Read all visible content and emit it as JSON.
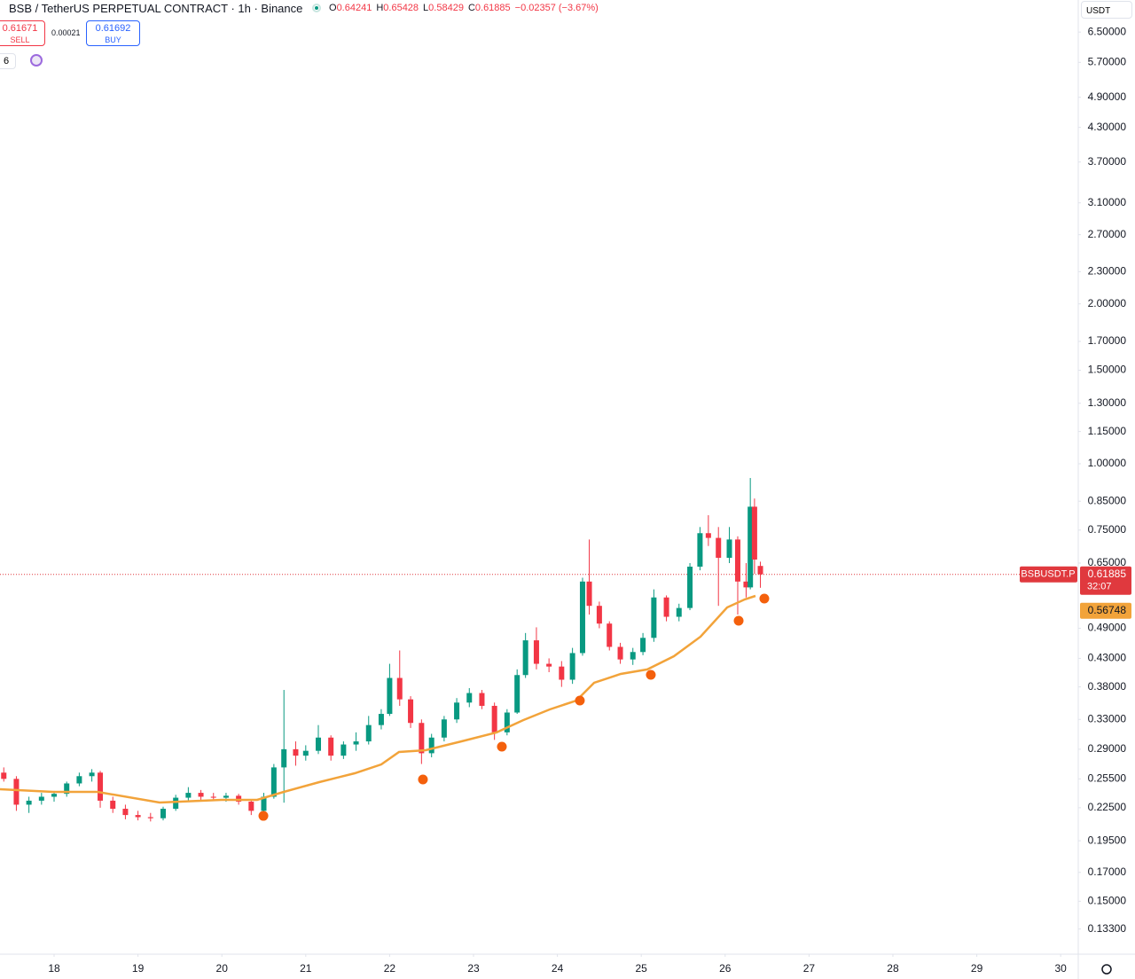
{
  "header": {
    "title": "BSB / TetherUS PERPETUAL CONTRACT · 1h · Binance",
    "ohlc": [
      {
        "key": "O",
        "value": "0.64241"
      },
      {
        "key": "H",
        "value": "0.65428"
      },
      {
        "key": "L",
        "value": "0.58429"
      },
      {
        "key": "C",
        "value": "0.61885"
      }
    ],
    "change": "−0.02357 (−3.67%)",
    "sell": {
      "price": "0.61671",
      "label": "SELL"
    },
    "spread": "0.00021",
    "buy": {
      "price": "0.61692",
      "label": "BUY"
    },
    "indicators": "6",
    "currency": "USDT"
  },
  "chart_data": {
    "type": "candlestick",
    "log_scale": true,
    "xlim": [
      17.355,
      30.199
    ],
    "ylim": [
      0.1197,
      7.47
    ],
    "xticks": [
      18,
      19,
      20,
      21,
      22,
      23,
      24,
      25,
      26,
      27,
      28,
      29,
      30
    ],
    "yticks": [
      {
        "value": 6.5,
        "label": "6.50000"
      },
      {
        "value": 5.7,
        "label": "5.70000"
      },
      {
        "value": 4.9,
        "label": "4.90000"
      },
      {
        "value": 4.3,
        "label": "4.30000"
      },
      {
        "value": 3.7,
        "label": "3.70000"
      },
      {
        "value": 3.1,
        "label": "3.10000"
      },
      {
        "value": 2.7,
        "label": "2.70000"
      },
      {
        "value": 2.3,
        "label": "2.30000"
      },
      {
        "value": 2.0,
        "label": "2.00000"
      },
      {
        "value": 1.7,
        "label": "1.70000"
      },
      {
        "value": 1.5,
        "label": "1.50000"
      },
      {
        "value": 1.3,
        "label": "1.30000"
      },
      {
        "value": 1.15,
        "label": "1.15000"
      },
      {
        "value": 1.0,
        "label": "1.00000"
      },
      {
        "value": 0.85,
        "label": "0.85000"
      },
      {
        "value": 0.75,
        "label": "0.75000"
      },
      {
        "value": 0.65,
        "label": "0.65000"
      },
      {
        "value": 0.49,
        "label": "0.49000"
      },
      {
        "value": 0.43,
        "label": "0.43000"
      },
      {
        "value": 0.38,
        "label": "0.38000"
      },
      {
        "value": 0.33,
        "label": "0.33000"
      },
      {
        "value": 0.29,
        "label": "0.29000"
      },
      {
        "value": 0.255,
        "label": "0.25500"
      },
      {
        "value": 0.225,
        "label": "0.22500"
      },
      {
        "value": 0.195,
        "label": "0.19500"
      },
      {
        "value": 0.17,
        "label": "0.17000"
      },
      {
        "value": 0.15,
        "label": "0.15000"
      },
      {
        "value": 0.133,
        "label": "0.13300"
      }
    ],
    "candles": {
      "up_color": "#089981",
      "down_color": "#f23645",
      "x": [
        17.4,
        17.55,
        17.7,
        17.85,
        18.0,
        18.15,
        18.3,
        18.45,
        18.55,
        18.7,
        18.85,
        19.0,
        19.15,
        19.3,
        19.45,
        19.6,
        19.75,
        19.9,
        20.05,
        20.2,
        20.35,
        20.5,
        20.62,
        20.74,
        20.88,
        21.0,
        21.15,
        21.3,
        21.45,
        21.6,
        21.75,
        21.9,
        22.0,
        22.12,
        22.25,
        22.38,
        22.5,
        22.65,
        22.8,
        22.95,
        23.1,
        23.25,
        23.4,
        23.52,
        23.62,
        23.75,
        23.9,
        24.05,
        24.18,
        24.3,
        24.38,
        24.5,
        24.62,
        24.75,
        24.9,
        25.02,
        25.15,
        25.3,
        25.45,
        25.58,
        25.7,
        25.8,
        25.92,
        26.05,
        26.15,
        26.25,
        26.3,
        26.35,
        26.42
      ],
      "open": [
        0.262,
        0.255,
        0.228,
        0.232,
        0.236,
        0.239,
        0.25,
        0.258,
        0.262,
        0.232,
        0.224,
        0.218,
        0.216,
        0.215,
        0.224,
        0.235,
        0.24,
        0.236,
        0.235,
        0.237,
        0.231,
        0.222,
        0.236,
        0.268,
        0.29,
        0.282,
        0.288,
        0.305,
        0.282,
        0.296,
        0.3,
        0.322,
        0.338,
        0.395,
        0.36,
        0.325,
        0.285,
        0.305,
        0.33,
        0.355,
        0.37,
        0.35,
        0.312,
        0.34,
        0.4,
        0.465,
        0.42,
        0.415,
        0.392,
        0.44,
        0.6,
        0.54,
        0.5,
        0.452,
        0.428,
        0.442,
        0.47,
        0.56,
        0.515,
        0.535,
        0.64,
        0.74,
        0.725,
        0.665,
        0.72,
        0.6,
        0.585,
        0.83,
        0.642
      ],
      "high": [
        0.268,
        0.258,
        0.236,
        0.24,
        0.242,
        0.252,
        0.262,
        0.266,
        0.264,
        0.236,
        0.228,
        0.222,
        0.22,
        0.226,
        0.238,
        0.246,
        0.243,
        0.24,
        0.24,
        0.239,
        0.233,
        0.24,
        0.272,
        0.375,
        0.3,
        0.295,
        0.322,
        0.308,
        0.3,
        0.312,
        0.335,
        0.345,
        0.42,
        0.445,
        0.365,
        0.33,
        0.31,
        0.335,
        0.362,
        0.378,
        0.375,
        0.355,
        0.345,
        0.41,
        0.48,
        0.492,
        0.43,
        0.425,
        0.45,
        0.61,
        0.72,
        0.55,
        0.505,
        0.46,
        0.45,
        0.48,
        0.58,
        0.565,
        0.545,
        0.65,
        0.76,
        0.8,
        0.76,
        0.76,
        0.73,
        0.65,
        0.94,
        0.86,
        0.654
      ],
      "low": [
        0.252,
        0.222,
        0.22,
        0.228,
        0.231,
        0.236,
        0.247,
        0.252,
        0.225,
        0.22,
        0.214,
        0.213,
        0.212,
        0.213,
        0.222,
        0.232,
        0.232,
        0.232,
        0.231,
        0.228,
        0.218,
        0.22,
        0.234,
        0.23,
        0.27,
        0.276,
        0.284,
        0.276,
        0.278,
        0.288,
        0.296,
        0.316,
        0.335,
        0.35,
        0.318,
        0.272,
        0.28,
        0.3,
        0.325,
        0.348,
        0.345,
        0.302,
        0.308,
        0.338,
        0.395,
        0.41,
        0.405,
        0.38,
        0.385,
        0.435,
        0.52,
        0.49,
        0.445,
        0.42,
        0.418,
        0.436,
        0.462,
        0.505,
        0.505,
        0.53,
        0.63,
        0.7,
        0.54,
        0.65,
        0.52,
        0.56,
        0.58,
        0.62,
        0.584
      ],
      "close": [
        0.255,
        0.228,
        0.232,
        0.236,
        0.239,
        0.25,
        0.258,
        0.262,
        0.232,
        0.224,
        0.218,
        0.216,
        0.215,
        0.224,
        0.235,
        0.24,
        0.236,
        0.235,
        0.237,
        0.231,
        0.222,
        0.236,
        0.268,
        0.29,
        0.282,
        0.288,
        0.305,
        0.282,
        0.296,
        0.3,
        0.322,
        0.338,
        0.395,
        0.36,
        0.325,
        0.285,
        0.305,
        0.33,
        0.355,
        0.37,
        0.35,
        0.312,
        0.34,
        0.4,
        0.465,
        0.42,
        0.415,
        0.392,
        0.44,
        0.6,
        0.54,
        0.5,
        0.452,
        0.428,
        0.442,
        0.47,
        0.56,
        0.515,
        0.535,
        0.64,
        0.74,
        0.725,
        0.665,
        0.72,
        0.6,
        0.585,
        0.83,
        0.66,
        0.619
      ]
    },
    "ma": {
      "color": "#f2a33a",
      "x": [
        17.355,
        17.989,
        18.518,
        19.258,
        19.998,
        20.421,
        20.738,
        21.161,
        21.584,
        21.901,
        22.112,
        22.429,
        22.852,
        23.275,
        23.592,
        23.909,
        24.226,
        24.438,
        24.755,
        25.072,
        25.389,
        25.706,
        26.023,
        26.235,
        26.362
      ],
      "values": [
        0.2438,
        0.241,
        0.241,
        0.2301,
        0.2328,
        0.2328,
        0.241,
        0.2514,
        0.2613,
        0.2715,
        0.2865,
        0.2888,
        0.3,
        0.3119,
        0.329,
        0.3446,
        0.3581,
        0.3867,
        0.4019,
        0.4098,
        0.434,
        0.4724,
        0.5363,
        0.5553,
        0.5638
      ]
    },
    "markers": {
      "color": "#f4600c",
      "x": [
        20.495,
        22.397,
        23.338,
        24.268,
        25.114,
        26.161,
        26.467
      ],
      "values": [
        0.2172,
        0.2543,
        0.2932,
        0.3581,
        0.4004,
        0.5062,
        0.5572
      ]
    },
    "last_price": {
      "symbol": "BSBUSDT.P",
      "value": 0.61885,
      "countdown": "32:07",
      "color": "#e0393e"
    },
    "ma_label": {
      "value": 0.56748,
      "color": "#f2a33a"
    }
  }
}
